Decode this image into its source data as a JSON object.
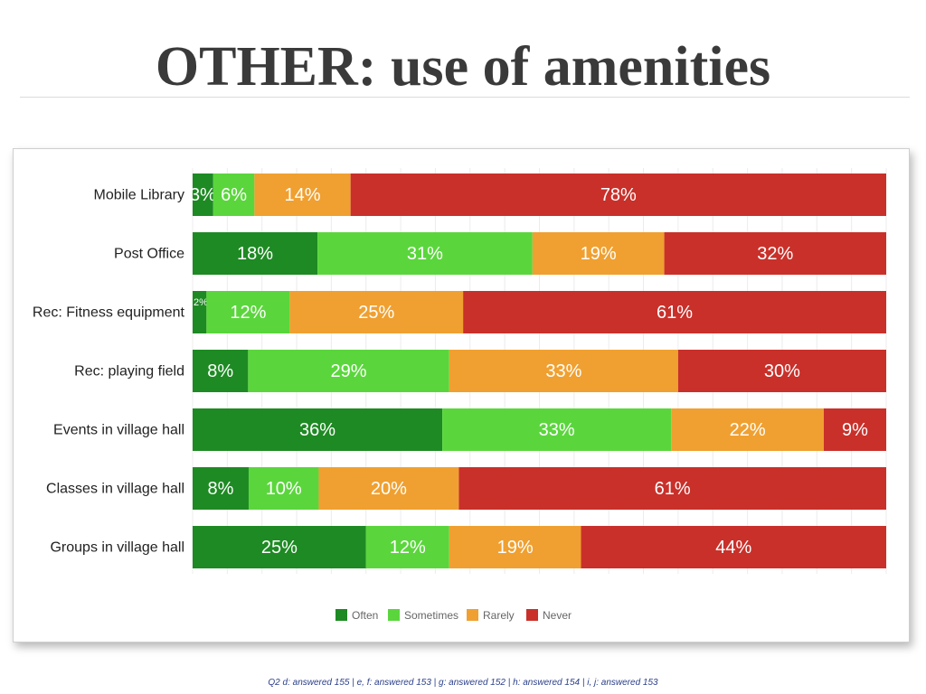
{
  "title": "OTHER: use of amenities",
  "footnote": "Q2 d: answered 155 | e, f: answered 153 | g: answered 152 | h: answered 154 | i, j: answered 153",
  "chart_data": {
    "type": "bar",
    "orientation": "horizontal",
    "stacked": true,
    "xlim": [
      0,
      100
    ],
    "grid": true,
    "legend_position": "bottom",
    "categories": [
      "Mobile Library",
      "Post Office",
      "Rec: Fitness equipment",
      "Rec: playing field",
      "Events in village hall",
      "Classes in village hall",
      "Groups in village hall"
    ],
    "series": [
      {
        "name": "Often",
        "color": "#1e8a23",
        "values": [
          3,
          18,
          2,
          8,
          36,
          8,
          25
        ],
        "labels": [
          "3%",
          "18%",
          "2%",
          "8%",
          "36%",
          "8%",
          "25%"
        ]
      },
      {
        "name": "Sometimes",
        "color": "#5ad63c",
        "values": [
          6,
          31,
          12,
          29,
          33,
          10,
          12
        ],
        "labels": [
          "6%",
          "31%",
          "12%",
          "29%",
          "33%",
          "10%",
          "12%"
        ]
      },
      {
        "name": "Rarely",
        "color": "#f0a030",
        "values": [
          14,
          19,
          25,
          33,
          22,
          20,
          19
        ],
        "labels": [
          "14%",
          "19%",
          "25%",
          "33%",
          "22%",
          "20%",
          "19%"
        ]
      },
      {
        "name": "Never",
        "color": "#c9302a",
        "values": [
          78,
          32,
          61,
          30,
          9,
          61,
          44
        ],
        "labels": [
          "78%",
          "32%",
          "61%",
          "30%",
          "9%",
          "61%",
          "44%"
        ]
      }
    ]
  }
}
